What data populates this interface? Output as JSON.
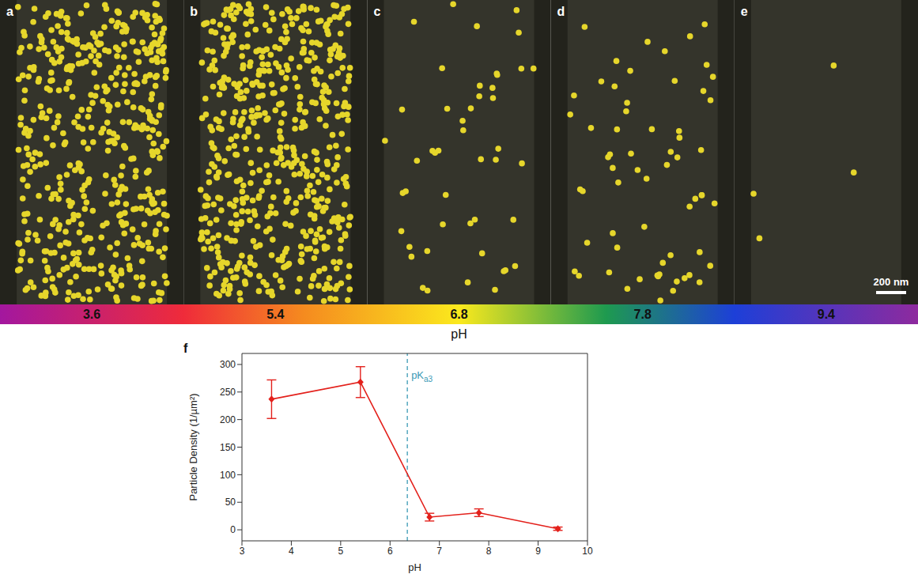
{
  "image_panels": {
    "letters": [
      "a",
      "b",
      "c",
      "d",
      "e"
    ],
    "scale_bar": "200 nm",
    "colorbar": {
      "label": "pH",
      "ticks": [
        3.6,
        5.4,
        6.8,
        7.8,
        9.4
      ]
    }
  },
  "chart_data": {
    "type": "line",
    "panel_letter": "f",
    "xlabel": "pH",
    "ylabel": "Particle Density (1/µm²)",
    "x": [
      3.6,
      5.4,
      6.8,
      7.8,
      9.4
    ],
    "series": [
      {
        "name": "Particle Density",
        "color": "#e3201b",
        "marker": "diamond",
        "line_style": "solid",
        "values": [
          237,
          268,
          23,
          31,
          2
        ],
        "error": [
          35,
          28,
          7,
          7,
          3
        ]
      }
    ],
    "xlim": [
      3,
      10
    ],
    "xticks": [
      3,
      4,
      5,
      6,
      7,
      8,
      9,
      10
    ],
    "ylim": [
      -20,
      320
    ],
    "yticks": [
      0,
      50,
      100,
      150,
      200,
      250,
      300
    ],
    "grid": false,
    "annotations": [
      {
        "x": 6.35,
        "label": "pK",
        "subscript": "a3",
        "color": "#3b9ab5",
        "line_style": "dashed"
      }
    ]
  }
}
